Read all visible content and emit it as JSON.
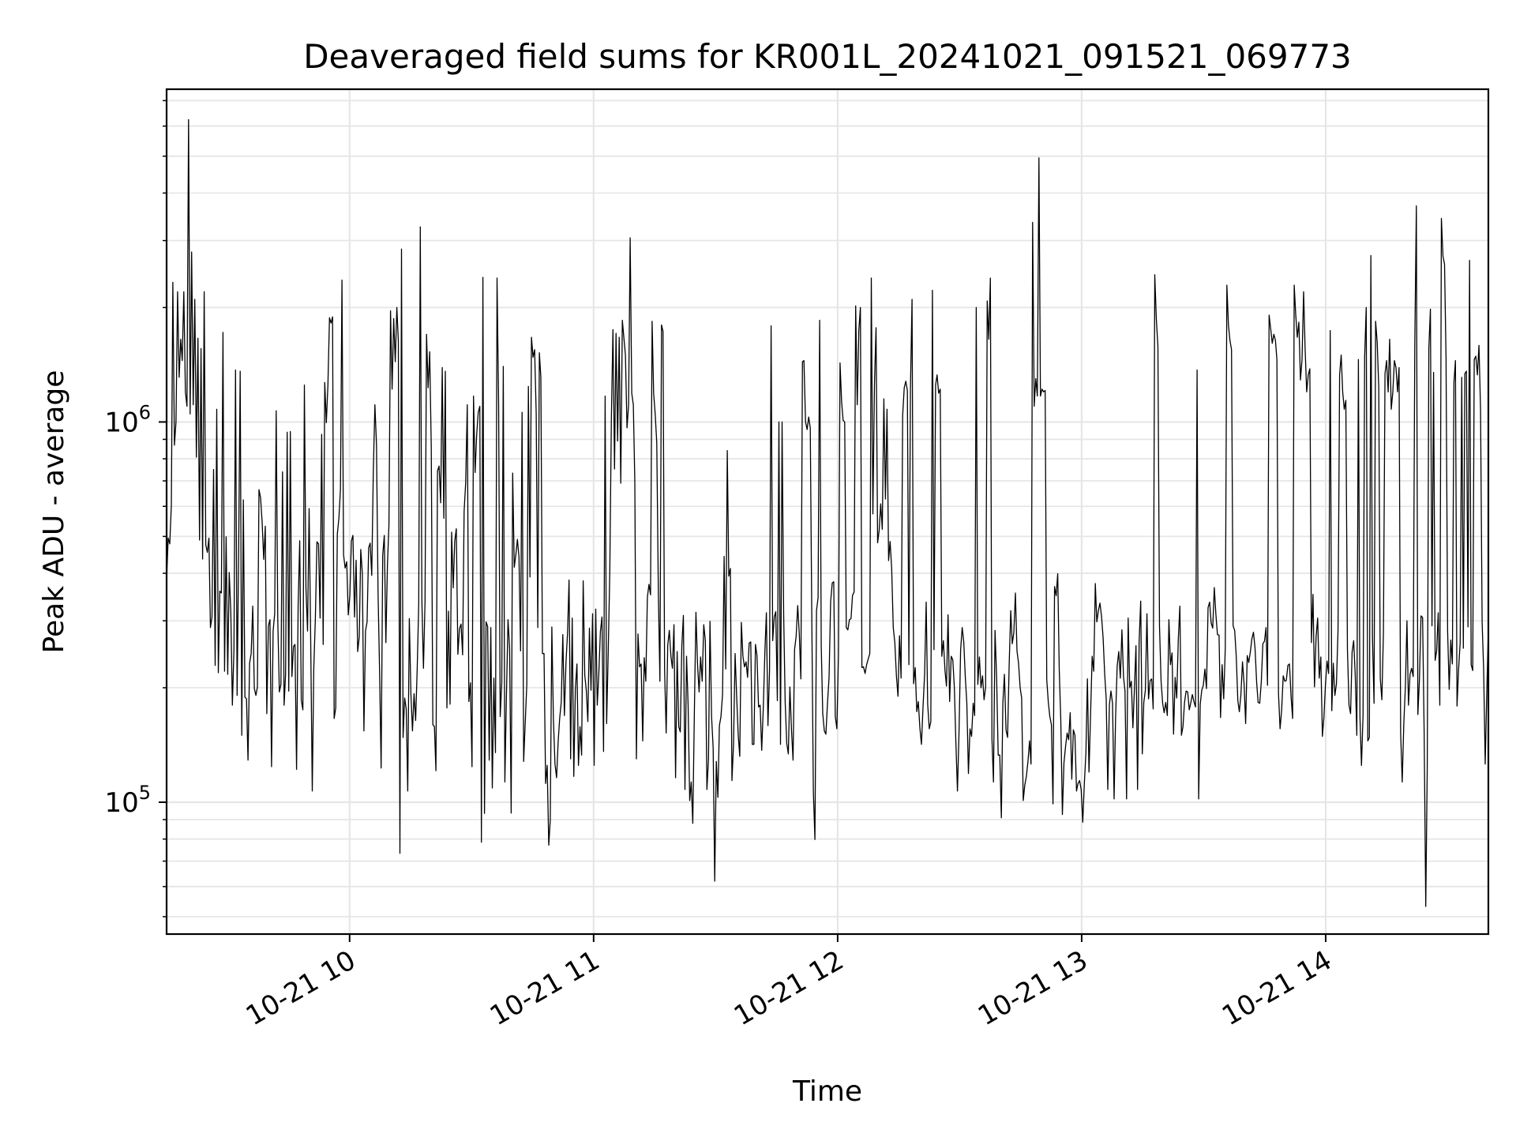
{
  "chart_data": {
    "type": "line",
    "title": "Deaveraged field sums for KR001L_20241021_091521_069773",
    "xlabel": "Time",
    "ylabel": "Peak ADU - average",
    "x_start": "2024-10-21 09:15",
    "x_end": "2024-10-21 14:40",
    "xlim": [
      "2024-10-21 09:15",
      "2024-10-21 14:40"
    ],
    "ylim": [
      45000,
      7500000
    ],
    "yscale": "log",
    "grid": true,
    "legend": "none",
    "line_color": "#000000",
    "x_ticks": [
      {
        "value": "2024-10-21 10:00",
        "label": "10-21 10"
      },
      {
        "value": "2024-10-21 11:00",
        "label": "10-21 11"
      },
      {
        "value": "2024-10-21 12:00",
        "label": "10-21 12"
      },
      {
        "value": "2024-10-21 13:00",
        "label": "10-21 13"
      },
      {
        "value": "2024-10-21 14:00",
        "label": "10-21 14"
      }
    ],
    "y_ticks": [
      {
        "value": 100000,
        "base": "10",
        "exp": "5"
      },
      {
        "value": 1000000,
        "base": "10",
        "exp": "6"
      }
    ],
    "series": [
      {
        "values": [
          382000,
          495000,
          478000,
          603000,
          2330000,
          869000,
          1000000,
          2200000,
          1310000,
          1650000,
          1450000,
          2200000,
          1200000,
          1100000,
          6240000,
          1050000,
          2800000,
          1110000,
          2100000,
          808000,
          1660000,
          489000,
          1560000,
          436000,
          2200000,
          475000,
          454000,
          495000,
          288000,
          307000,
          750000,
          229000,
          1080000,
          219000,
          359000,
          355000,
          1720000,
          221000,
          499000,
          217000,
          402000,
          318000,
          180000,
          252000,
          1370000,
          191000,
          449000,
          1360000,
          150000,
          624000,
          189000,
          187000,
          129000,
          232000,
          246000,
          328000,
          199000,
          191000,
          201000,
          664000,
          632000,
          545000,
          435000,
          532000,
          171000,
          291000,
          302000,
          124000,
          282000,
          313000,
          1070000,
          301000,
          195000,
          204000,
          739000,
          180000,
          217000,
          940000,
          196000,
          944000,
          214000,
          257000,
          260000,
          122000,
          330000,
          487000,
          185000,
          175000,
          1250000,
          365000,
          282000,
          592000,
          266000,
          107000,
          225000,
          304000,
          484000,
          478000,
          305000,
          928000,
          260000,
          1270000,
          996000,
          1250000,
          1880000,
          1820000,
          1890000,
          166000,
          177000,
          507000,
          558000,
          665000,
          2360000,
          448000,
          413000,
          429000,
          311000,
          350000,
          486000,
          503000,
          307000,
          433000,
          249000,
          272000,
          462000,
          399000,
          154000,
          282000,
          298000,
          467000,
          480000,
          395000,
          742000,
          1110000,
          876000,
          355000,
          224000,
          123000,
          446000,
          503000,
          263000,
          422000,
          537000,
          1960000,
          1220000,
          1870000,
          1440000,
          2000000,
          1630000,
          73400,
          2850000,
          148000,
          188000,
          176000,
          107000,
          304000,
          193000,
          154000,
          193000,
          164000,
          221000,
          331000,
          3260000,
          339000,
          225000,
          337000,
          1700000,
          1230000,
          1530000,
          855000,
          160000,
          158000,
          121000,
          743000,
          766000,
          613000,
          1390000,
          558000,
          1360000,
          177000,
          318000,
          181000,
          513000,
          366000,
          485000,
          524000,
          245000,
          286000,
          294000,
          244000,
          582000,
          693000,
          1110000,
          184000,
          206000,
          124000,
          1170000,
          736000,
          926000,
          1060000,
          1100000,
          78500,
          2400000,
          93500,
          298000,
          290000,
          129000,
          288000,
          109000,
          212000,
          135000,
          2390000,
          1120000,
          168000,
          206000,
          1400000,
          113000,
          191000,
          302000,
          254000,
          93600,
          734000,
          415000,
          447000,
          491000,
          441000,
          250000,
          1060000,
          128000,
          162000,
          204000,
          1240000,
          391000,
          1670000,
          1480000,
          1550000,
          1050000,
          288000,
          1520000,
          1310000,
          246000,
          246000,
          112000,
          125000,
          77100,
          89800,
          289000,
          165000,
          126000,
          116000,
          144000,
          166000,
          183000,
          276000,
          169000,
          233000,
          279000,
          384000,
          130000,
          305000,
          117000,
          199000,
          231000,
          125000,
          158000,
          133000,
          382000,
          216000,
          196000,
          163000,
          287000,
          197000,
          313000,
          125000,
          322000,
          180000,
          218000,
          281000,
          307000,
          136000,
          1170000,
          161000,
          248000,
          403000,
          1020000,
          1750000,
          752000,
          1710000,
          891000,
          1670000,
          690000,
          1850000,
          1660000,
          1500000,
          965000,
          1110000,
          3050000,
          1190000,
          1110000,
          697000,
          130000,
          277000,
          227000,
          231000,
          145000,
          240000,
          208000,
          346000,
          374000,
          351000,
          1840000,
          1190000,
          1050000,
          880000,
          355000,
          208000,
          1800000,
          1730000,
          223000,
          152000,
          259000,
          283000,
          242000,
          225000,
          293000,
          116000,
          249000,
          158000,
          153000,
          257000,
          310000,
          108000,
          242000,
          180000,
          101000,
          113000,
          88000,
          172000,
          316000,
          231000,
          195000,
          241000,
          208000,
          293000,
          266000,
          108000,
          130000,
          299000,
          168000,
          139000,
          62000,
          128000,
          103000,
          159000,
          168000,
          192000,
          443000,
          224000,
          841000,
          393000,
          412000,
          114000,
          142000,
          246000,
          189000,
          151000,
          132000,
          297000,
          242000,
          227000,
          234000,
          213000,
          262000,
          264000,
          142000,
          142000,
          260000,
          243000,
          178000,
          180000,
          137000,
          177000,
          248000,
          315000,
          159000,
          222000,
          1790000,
          266000,
          307000,
          317000,
          185000,
          1000000,
          142000,
          1000000,
          312000,
          184000,
          143000,
          134000,
          201000,
          155000,
          129000,
          252000,
          273000,
          329000,
          277000,
          211000,
          1440000,
          1450000,
          1000000,
          955000,
          1030000,
          965000,
          294000,
          107000,
          79800,
          319000,
          345000,
          1850000,
          257000,
          171000,
          154000,
          151000,
          182000,
          213000,
          337000,
          377000,
          380000,
          168000,
          156000,
          244000,
          1430000,
          1130000,
          1010000,
          1000000,
          288000,
          284000,
          302000,
          304000,
          350000,
          357000,
          2020000,
          1110000,
          1740000,
          2000000,
          226000,
          227000,
          218000,
          230000,
          238000,
          246000,
          2390000,
          573000,
          1260000,
          1770000,
          481000,
          520000,
          609000,
          522000,
          1150000,
          627000,
          1080000,
          432000,
          485000,
          412000,
          288000,
          263000,
          215000,
          190000,
          274000,
          212000,
          1040000,
          1230000,
          1280000,
          1210000,
          230000,
          1230000,
          2100000,
          205000,
          226000,
          173000,
          184000,
          157000,
          142000,
          178000,
          217000,
          336000,
          181000,
          156000,
          163000,
          2220000,
          252000,
          1250000,
          1330000,
          1190000,
          1220000,
          242000,
          266000,
          222000,
          202000,
          311000,
          184000,
          242000,
          237000,
          200000,
          144000,
          107000,
          153000,
          251000,
          288000,
          264000,
          214000,
          182000,
          119000,
          156000,
          149000,
          182000,
          169000,
          2000000,
          204000,
          241000,
          200000,
          215000,
          186000,
          201000,
          2080000,
          1650000,
          2390000,
          147000,
          113000,
          283000,
          213000,
          133000,
          133000,
          91000,
          182000,
          217000,
          155000,
          148000,
          230000,
          319000,
          261000,
          279000,
          355000,
          250000,
          232000,
          200000,
          188000,
          101000,
          111000,
          117000,
          128000,
          145000,
          126000,
          3350000,
          1100000,
          1300000,
          1170000,
          4950000,
          1170000,
          1220000,
          1200000,
          1210000,
          210000,
          183000,
          168000,
          160000,
          99000,
          369000,
          349000,
          399000,
          224000,
          164000,
          92800,
          127000,
          140000,
          152000,
          146000,
          172000,
          115000,
          155000,
          150000,
          107000,
          112000,
          114000,
          108000,
          88600,
          112000,
          135000,
          211000,
          120000,
          170000,
          242000,
          221000,
          376000,
          298000,
          319000,
          334000,
          308000,
          270000,
          217000,
          187000,
          108000,
          180000,
          196000,
          182000,
          102000,
          168000,
          228000,
          249000,
          212000,
          284000,
          214000,
          196000,
          102000,
          305000,
          200000,
          208000,
          157000,
          198000,
          258000,
          108000,
          264000,
          338000,
          134000,
          183000,
          197000,
          313000,
          187000,
          209000,
          211000,
          176000,
          2440000,
          1860000,
          1580000,
          290000,
          208000,
          182000,
          172000,
          183000,
          169000,
          302000,
          230000,
          247000,
          151000,
          213000,
          188000,
          268000,
          328000,
          150000,
          158000,
          183000,
          196000,
          195000,
          175000,
          183000,
          192000,
          184000,
          178000,
          1370000,
          102000,
          181000,
          197000,
          203000,
          224000,
          199000,
          325000,
          336000,
          296000,
          287000,
          367000,
          312000,
          276000,
          275000,
          167000,
          230000,
          187000,
          254000,
          2290000,
          1800000,
          1640000,
          1550000,
          291000,
          283000,
          242000,
          185000,
          173000,
          192000,
          234000,
          205000,
          161000,
          243000,
          233000,
          248000,
          269000,
          280000,
          254000,
          207000,
          183000,
          182000,
          207000,
          261000,
          265000,
          288000,
          203000,
          1910000,
          1760000,
          1610000,
          1700000,
          1640000,
          1460000,
          193000,
          156000,
          175000,
          215000,
          208000,
          209000,
          229000,
          231000,
          190000,
          166000,
          2290000,
          1920000,
          1670000,
          1830000,
          1290000,
          1460000,
          2200000,
          1560000,
          1200000,
          1330000,
          1380000,
          263000,
          352000,
          201000,
          272000,
          305000,
          212000,
          241000,
          149000,
          167000,
          204000,
          235000,
          218000,
          1740000,
          174000,
          232000,
          191000,
          205000,
          284000,
          1330000,
          1500000,
          1200000,
          1080000,
          1140000,
          253000,
          180000,
          171000,
          248000,
          266000,
          216000,
          150000,
          1460000,
          167000,
          125000,
          170000,
          1480000,
          2000000,
          145000,
          148000,
          2740000,
          272000,
          182000,
          1840000,
          1620000,
          1230000,
          212000,
          186000,
          279000,
          1340000,
          1450000,
          1200000,
          1650000,
          1080000,
          1200000,
          1450000,
          1390000,
          1200000,
          1390000,
          152000,
          113000,
          161000,
          201000,
          300000,
          180000,
          217000,
          225000,
          214000,
          1580000,
          3700000,
          170000,
          210000,
          309000,
          306000,
          151000,
          53200,
          123000,
          1560000,
          1980000,
          291000,
          1350000,
          236000,
          250000,
          315000,
          180000,
          3430000,
          2730000,
          2600000,
          1470000,
          281000,
          198000,
          267000,
          231000,
          1270000,
          1450000,
          179000,
          224000,
          263000,
          1310000,
          254000,
          1340000,
          1360000,
          289000,
          2660000,
          230000,
          222000,
          1460000,
          1490000,
          1330000,
          1590000,
          1080000,
          297000,
          224000,
          126000,
          194000,
          289000
        ]
      }
    ]
  }
}
